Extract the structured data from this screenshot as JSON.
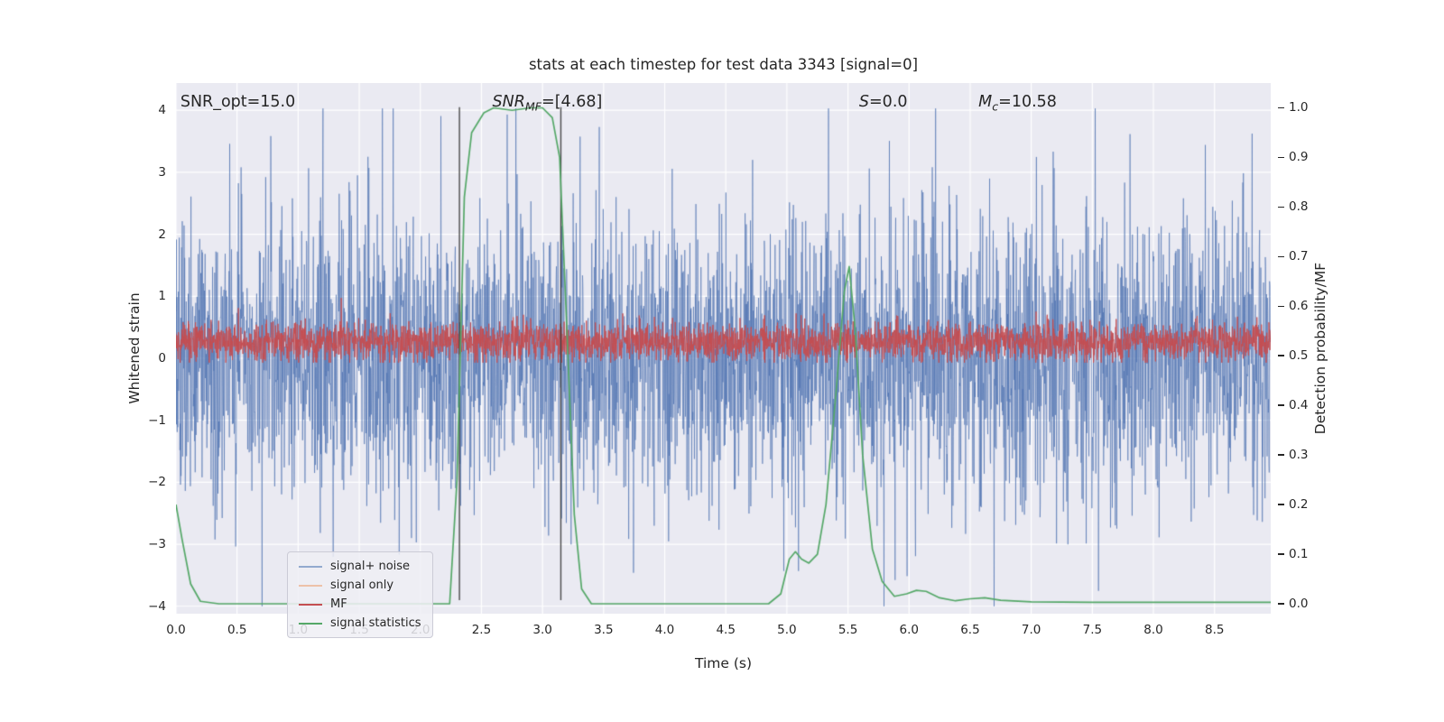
{
  "figure": {
    "title": "stats at each timestep for test data 3343 [signal=0]",
    "x_axis_label": "Time (s)",
    "y_left_label": "Whitened strain",
    "y_right_label": "Detection probability/MF"
  },
  "annotations": {
    "snr_opt": {
      "pre": "SNR_opt=15.0",
      "sub": "",
      "post": ""
    },
    "snr_mf": {
      "pre": "SNR",
      "sub": "MF",
      "post": "=[4.68]"
    },
    "s_stat": {
      "pre": "S",
      "sub": "",
      "post": "=0.0"
    },
    "m_c": {
      "pre": "M",
      "sub": "c",
      "post": "=10.58"
    }
  },
  "legend": {
    "items": [
      {
        "label": "signal+ noise",
        "color": "#93aacf"
      },
      {
        "label": "signal only",
        "color": "#edc1a8"
      },
      {
        "label": "MF",
        "color": "#c44e52"
      },
      {
        "label": "signal statistics",
        "color": "#55a868"
      }
    ]
  },
  "chart_data": {
    "type": "line",
    "title": "stats at each timestep for test data 3343 [signal=0]",
    "xlabel": "Time (s)",
    "ylabel_left": "Whitened strain",
    "ylabel_right": "Detection probability/MF",
    "background_color": "#eaeaf2",
    "grid_color": "#ffffff",
    "x_range": [
      0.0,
      8.96
    ],
    "y_left_range": [
      -4.12,
      4.44
    ],
    "y_right_range": [
      -0.02,
      1.05
    ],
    "x_tick_values": [
      0.0,
      0.5,
      1.0,
      1.5,
      2.0,
      2.5,
      3.0,
      3.5,
      4.0,
      4.5,
      5.0,
      5.5,
      6.0,
      6.5,
      7.0,
      7.5,
      8.0,
      8.5
    ],
    "x_tick_labels": [
      "0.0",
      "0.5",
      "1.0",
      "1.5",
      "2.0",
      "2.5",
      "3.0",
      "3.5",
      "4.0",
      "4.5",
      "5.0",
      "5.5",
      "6.0",
      "6.5",
      "7.0",
      "7.5",
      "8.0",
      "8.5"
    ],
    "y_left_tick_values": [
      4,
      3,
      2,
      1,
      0,
      -1,
      -2,
      -3,
      -4
    ],
    "y_left_tick_labels": [
      "4",
      "3",
      "2",
      "1",
      "0",
      "−1",
      "−2",
      "−3",
      "−4"
    ],
    "y_right_tick_values": [
      1.0,
      0.9,
      0.8,
      0.7,
      0.6,
      0.5,
      0.4,
      0.3,
      0.2,
      0.1,
      0.0
    ],
    "y_right_tick_labels": [
      "1.0",
      "0.9",
      "0.8",
      "0.7",
      "0.6",
      "0.5",
      "0.4",
      "0.3",
      "0.2",
      "0.1",
      "0.0"
    ],
    "vlines": [
      {
        "x": 2.32,
        "ymin": -3.9,
        "ymax": 4.05,
        "color": "#3a3a3a"
      },
      {
        "x": 3.15,
        "ymin": -3.9,
        "ymax": 4.05,
        "color": "#3a3a3a"
      }
    ],
    "series": [
      {
        "name": "signal+ noise",
        "kind": "noise",
        "axis": "left",
        "color": "#4c72b0",
        "opacity": 0.6,
        "mean": 0,
        "sigma": 1.12,
        "tail_prob": 0.03,
        "tail_scale": 1.9,
        "clip": [
          -4.0,
          4.03
        ],
        "n": 3650,
        "seed": 1337
      },
      {
        "name": "signal only",
        "kind": "none",
        "axis": "left",
        "color": "#dd8452",
        "note": "signal=0, curve not visible"
      },
      {
        "name": "MF",
        "kind": "noise",
        "axis": "left",
        "color": "#c44e52",
        "opacity": 0.95,
        "mean": 0.27,
        "sigma": 0.155,
        "tail_prob": 0.02,
        "tail_scale": 1.8,
        "clip": [
          -0.07,
          1.08
        ],
        "n": 3650,
        "seed": 777
      },
      {
        "name": "signal statistics",
        "kind": "keypoints",
        "axis": "right",
        "color": "#55a868",
        "opacity": 1.0,
        "points": [
          [
            0.0,
            0.2
          ],
          [
            0.05,
            0.13
          ],
          [
            0.12,
            0.04
          ],
          [
            0.2,
            0.005
          ],
          [
            0.35,
            0.0
          ],
          [
            2.24,
            0.0
          ],
          [
            2.3,
            0.25
          ],
          [
            2.36,
            0.82
          ],
          [
            2.42,
            0.95
          ],
          [
            2.52,
            0.99
          ],
          [
            2.6,
            1.0
          ],
          [
            2.75,
            0.995
          ],
          [
            2.9,
            1.0
          ],
          [
            3.0,
            1.0
          ],
          [
            3.08,
            0.98
          ],
          [
            3.14,
            0.9
          ],
          [
            3.2,
            0.55
          ],
          [
            3.26,
            0.18
          ],
          [
            3.32,
            0.03
          ],
          [
            3.4,
            0.0
          ],
          [
            4.85,
            0.0
          ],
          [
            4.95,
            0.02
          ],
          [
            5.02,
            0.09
          ],
          [
            5.07,
            0.105
          ],
          [
            5.12,
            0.09
          ],
          [
            5.18,
            0.082
          ],
          [
            5.25,
            0.1
          ],
          [
            5.32,
            0.2
          ],
          [
            5.4,
            0.42
          ],
          [
            5.47,
            0.63
          ],
          [
            5.51,
            0.68
          ],
          [
            5.56,
            0.55
          ],
          [
            5.62,
            0.3
          ],
          [
            5.7,
            0.11
          ],
          [
            5.78,
            0.045
          ],
          [
            5.88,
            0.015
          ],
          [
            5.98,
            0.02
          ],
          [
            6.06,
            0.027
          ],
          [
            6.14,
            0.025
          ],
          [
            6.25,
            0.012
          ],
          [
            6.38,
            0.006
          ],
          [
            6.5,
            0.01
          ],
          [
            6.62,
            0.012
          ],
          [
            6.75,
            0.007
          ],
          [
            7.0,
            0.004
          ],
          [
            7.5,
            0.003
          ],
          [
            8.0,
            0.003
          ],
          [
            8.5,
            0.003
          ],
          [
            8.96,
            0.003
          ]
        ]
      }
    ]
  }
}
